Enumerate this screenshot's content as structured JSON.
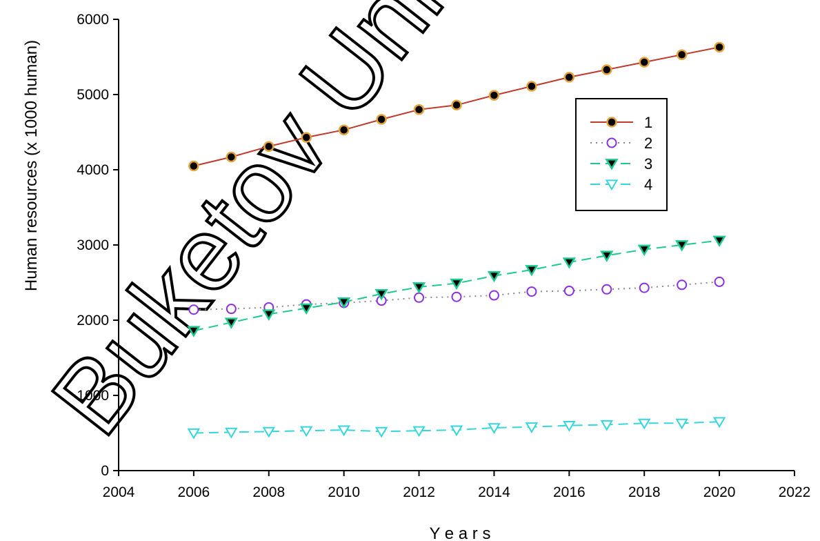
{
  "chart_data": {
    "type": "line",
    "title": "",
    "xlabel": "Y e a r s",
    "ylabel": "Human resources (x 1000 human)",
    "xlim": [
      2004,
      2022
    ],
    "ylim": [
      0,
      6000
    ],
    "xticks": [
      2004,
      2006,
      2008,
      2010,
      2012,
      2014,
      2016,
      2018,
      2020,
      2022
    ],
    "yticks": [
      0,
      1000,
      2000,
      3000,
      4000,
      5000,
      6000
    ],
    "grid": false,
    "legend_position": "upper-right",
    "x": [
      2006,
      2007,
      2008,
      2009,
      2010,
      2011,
      2012,
      2013,
      2014,
      2015,
      2016,
      2017,
      2018,
      2019,
      2020
    ],
    "series": [
      {
        "name": "1",
        "marker": "filled-circle",
        "line_style": "solid",
        "line_color": "#c0392b",
        "marker_fill": "#000000",
        "marker_stroke": "#e3a23c",
        "values": [
          4050,
          4170,
          4310,
          4430,
          4530,
          4670,
          4800,
          4860,
          4990,
          5110,
          5230,
          5330,
          5430,
          5530,
          5630
        ]
      },
      {
        "name": "2",
        "marker": "open-circle",
        "line_style": "dotted",
        "line_color": "#8a8a8a",
        "marker_fill": "#ffffff",
        "marker_stroke": "#8b2fe0",
        "values": [
          2140,
          2150,
          2170,
          2210,
          2230,
          2260,
          2300,
          2310,
          2330,
          2380,
          2390,
          2410,
          2430,
          2470,
          2510
        ]
      },
      {
        "name": "3",
        "marker": "filled-triangle-down",
        "line_style": "dashed",
        "line_color": "#1ec98f",
        "marker_fill": "#000000",
        "marker_stroke": "#1ec98f",
        "values": [
          1860,
          1970,
          2080,
          2160,
          2240,
          2350,
          2440,
          2490,
          2590,
          2670,
          2770,
          2860,
          2940,
          3000,
          3060
        ]
      },
      {
        "name": "4",
        "marker": "open-triangle-down",
        "line_style": "dashed",
        "line_color": "#33d6dc",
        "marker_fill": "#ffffff",
        "marker_stroke": "#33d6dc",
        "values": [
          500,
          510,
          520,
          530,
          540,
          520,
          530,
          540,
          570,
          580,
          600,
          610,
          630,
          630,
          650
        ]
      }
    ]
  },
  "watermark": {
    "text": "Buketov Uni"
  }
}
